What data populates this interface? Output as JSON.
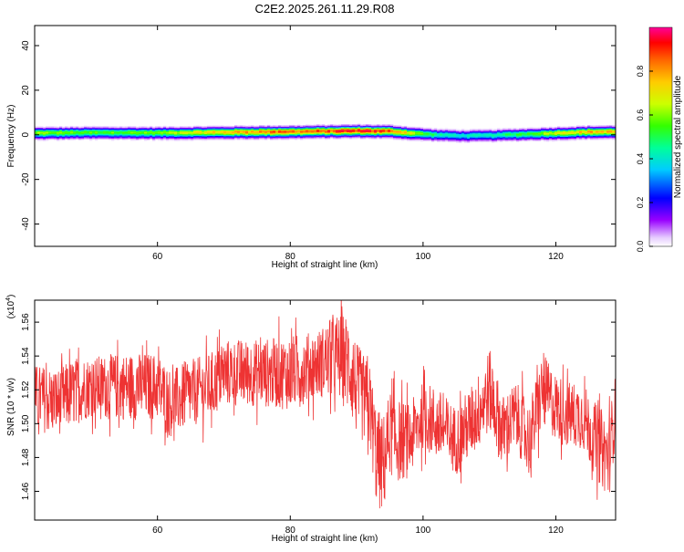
{
  "figure_title": "C2E2.2025.261.11.29.R08",
  "chart_data": [
    {
      "type": "heatmap",
      "title": "C2E2.2025.261.11.29.R08",
      "xlabel": "Height of straight line (km)",
      "ylabel": "Frequency (Hz)",
      "xlim": [
        41.5,
        129
      ],
      "ylim": [
        -50,
        49
      ],
      "xticks": [
        60,
        80,
        100,
        120
      ],
      "yticks": [
        40,
        20,
        0,
        -20,
        -40
      ],
      "colorbar": {
        "label": "Normalized spectral amplitude",
        "range": [
          0,
          1
        ],
        "ticks": [
          0.0,
          0.2,
          0.4,
          0.6,
          0.8
        ],
        "tick_labels": [
          "0.0",
          "0.2",
          "0.4",
          "0.6",
          "0.8"
        ]
      },
      "band": {
        "description_points_height_km": [
          42,
          50,
          60,
          68,
          75,
          80,
          85,
          90,
          95,
          98,
          102,
          106,
          110,
          115,
          120,
          125,
          129
        ],
        "center_freq_hz": [
          1.0,
          1.2,
          1.1,
          1.3,
          1.5,
          1.6,
          1.8,
          2.0,
          1.8,
          1.0,
          0.2,
          -0.2,
          0.0,
          0.5,
          1.0,
          1.5,
          1.6
        ],
        "peak_amplitude": [
          0.62,
          0.58,
          0.6,
          0.75,
          0.85,
          0.88,
          0.9,
          0.95,
          0.9,
          0.7,
          0.45,
          0.42,
          0.45,
          0.55,
          0.7,
          0.8,
          0.78
        ]
      }
    },
    {
      "type": "line",
      "xlabel": "Height of straight line (km)",
      "ylabel": "SNR (10 * v/v)",
      "yscale_label": "(x10",
      "yscale_exponent": "4",
      "yscale_close": ")",
      "xlim": [
        41.5,
        129
      ],
      "ylim": [
        1.443,
        1.573
      ],
      "xticks": [
        60,
        80,
        100,
        120
      ],
      "yticks": [
        1.46,
        1.48,
        1.5,
        1.52,
        1.54,
        1.56
      ],
      "ytick_labels": [
        "1.46",
        "1.48",
        "1.50",
        "1.52",
        "1.54",
        "1.56"
      ],
      "color": "#ee3333",
      "series": [
        {
          "name": "SNR",
          "x": [
            42,
            45,
            48,
            50,
            55,
            60,
            62,
            65,
            68,
            70,
            75,
            80,
            84,
            87,
            89,
            90,
            92,
            93,
            94,
            95,
            96,
            98,
            100,
            102,
            105,
            108,
            110,
            112,
            114,
            116,
            118,
            120,
            122,
            124,
            126,
            128,
            129
          ],
          "y": [
            1.515,
            1.513,
            1.52,
            1.522,
            1.522,
            1.522,
            1.512,
            1.518,
            1.522,
            1.53,
            1.53,
            1.53,
            1.535,
            1.54,
            1.535,
            1.52,
            1.51,
            1.48,
            1.475,
            1.495,
            1.49,
            1.49,
            1.505,
            1.5,
            1.49,
            1.505,
            1.52,
            1.495,
            1.505,
            1.49,
            1.52,
            1.51,
            1.505,
            1.505,
            1.49,
            1.48,
            1.51
          ],
          "noise_amplitude": [
            0.02,
            0.02,
            0.02,
            0.018,
            0.02,
            0.02,
            0.02,
            0.02,
            0.02,
            0.02,
            0.02,
            0.022,
            0.02,
            0.025,
            0.03,
            0.028,
            0.025,
            0.03,
            0.03,
            0.025,
            0.025,
            0.022,
            0.02,
            0.022,
            0.02,
            0.022,
            0.025,
            0.022,
            0.02,
            0.022,
            0.022,
            0.02,
            0.02,
            0.02,
            0.022,
            0.025,
            0.02
          ]
        }
      ]
    }
  ]
}
